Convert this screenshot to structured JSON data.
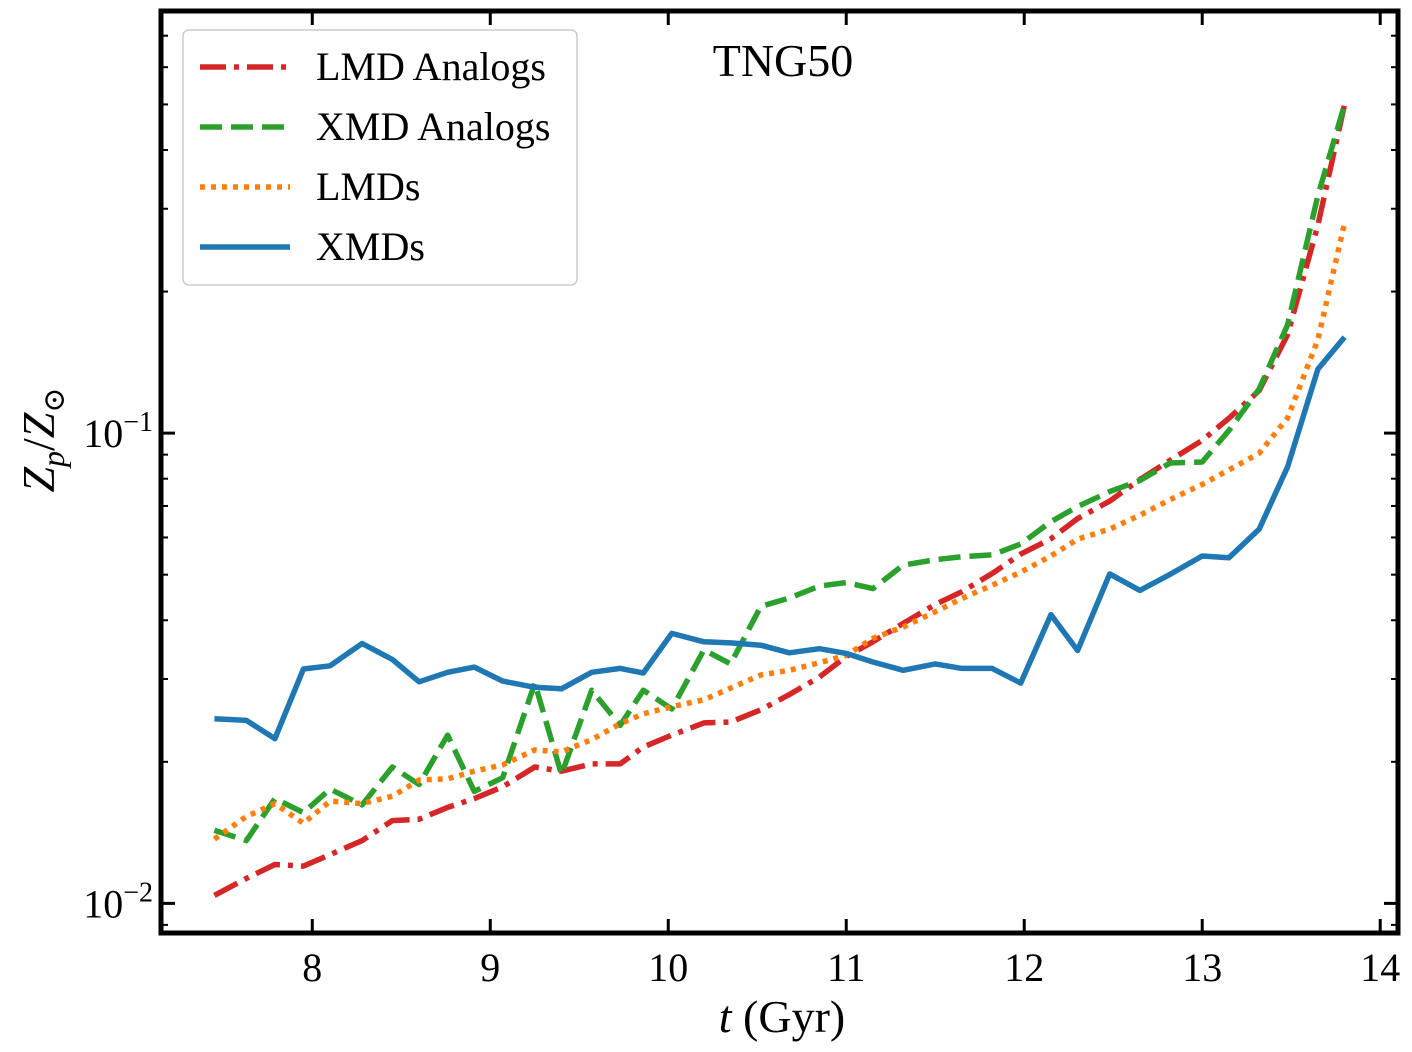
{
  "chart_data": {
    "type": "line",
    "title": "TNG50",
    "xlabel_italic": "t",
    "xlabel_unit": " (Gyr)",
    "ylabel_base": "Z",
    "ylabel_sub": "p",
    "ylabel_slash": "/",
    "ylabel_den": "Z",
    "ylabel_den_sub": "⊙",
    "xscale": "linear",
    "yscale": "log",
    "xlim": [
      7.15,
      14.1
    ],
    "ylim": [
      0.00865,
      0.79
    ],
    "x_ticks": [
      8,
      9,
      10,
      11,
      12,
      13,
      14
    ],
    "x_tick_labels": [
      "8",
      "9",
      "10",
      "11",
      "12",
      "13",
      "14"
    ],
    "y_major_ticks": [
      0.01,
      0.1
    ],
    "y_tick_labels": [
      {
        "base": "10",
        "exp": "−2"
      },
      {
        "base": "10",
        "exp": "−1"
      }
    ],
    "legend_position": "top-left",
    "series": [
      {
        "name": "LMD Analogs",
        "color": "#d62728",
        "style": "dashdot",
        "x": [
          7.45,
          7.63,
          7.79,
          7.95,
          8.1,
          8.28,
          8.45,
          8.6,
          8.76,
          8.91,
          9.07,
          9.25,
          9.4,
          9.57,
          9.73,
          9.86,
          10.02,
          10.2,
          10.35,
          10.52,
          10.68,
          10.85,
          11.0,
          11.15,
          11.32,
          11.5,
          11.65,
          11.82,
          11.98,
          12.15,
          12.3,
          12.48,
          12.65,
          12.82,
          13.0,
          13.15,
          13.32,
          13.48,
          13.65,
          13.8
        ],
        "values": [
          0.0104,
          0.0113,
          0.0121,
          0.012,
          0.0127,
          0.0136,
          0.015,
          0.0151,
          0.016,
          0.0167,
          0.0177,
          0.0195,
          0.0191,
          0.0198,
          0.0198,
          0.0215,
          0.0228,
          0.0242,
          0.0243,
          0.0258,
          0.0278,
          0.0303,
          0.0335,
          0.036,
          0.0394,
          0.0432,
          0.046,
          0.0503,
          0.0553,
          0.0596,
          0.0658,
          0.0717,
          0.0797,
          0.0876,
          0.0965,
          0.1075,
          0.1232,
          0.162,
          0.277,
          0.5
        ]
      },
      {
        "name": "XMD Analogs",
        "color": "#2ca02c",
        "style": "dashed",
        "x": [
          7.45,
          7.63,
          7.79,
          7.95,
          8.1,
          8.28,
          8.45,
          8.6,
          8.76,
          8.91,
          9.07,
          9.25,
          9.4,
          9.57,
          9.73,
          9.86,
          10.02,
          10.2,
          10.35,
          10.52,
          10.68,
          10.85,
          11.0,
          11.15,
          11.32,
          11.5,
          11.65,
          11.82,
          11.98,
          12.15,
          12.3,
          12.48,
          12.65,
          12.82,
          13.0,
          13.15,
          13.32,
          13.48,
          13.65,
          13.8
        ],
        "values": [
          0.0143,
          0.0136,
          0.0167,
          0.0156,
          0.0175,
          0.0162,
          0.0195,
          0.0179,
          0.0228,
          0.0173,
          0.0185,
          0.0294,
          0.0188,
          0.0284,
          0.0239,
          0.0284,
          0.0259,
          0.0346,
          0.0323,
          0.0428,
          0.0446,
          0.0473,
          0.0481,
          0.0467,
          0.0524,
          0.0538,
          0.0546,
          0.0551,
          0.0581,
          0.0648,
          0.0698,
          0.0751,
          0.0793,
          0.0864,
          0.0868,
          0.1013,
          0.1242,
          0.17,
          0.32,
          0.5
        ]
      },
      {
        "name": "LMDs",
        "color": "#ff7f0e",
        "style": "dotted",
        "x": [
          7.45,
          7.63,
          7.79,
          7.95,
          8.1,
          8.28,
          8.45,
          8.6,
          8.76,
          8.91,
          9.07,
          9.25,
          9.4,
          9.57,
          9.73,
          9.86,
          10.02,
          10.2,
          10.35,
          10.52,
          10.68,
          10.85,
          11.0,
          11.15,
          11.32,
          11.5,
          11.65,
          11.82,
          11.98,
          12.15,
          12.3,
          12.48,
          12.65,
          12.82,
          13.0,
          13.15,
          13.32,
          13.48,
          13.65,
          13.8
        ],
        "values": [
          0.0137,
          0.0153,
          0.0163,
          0.0148,
          0.0165,
          0.0163,
          0.0169,
          0.0183,
          0.0184,
          0.0191,
          0.0197,
          0.0212,
          0.021,
          0.0223,
          0.0241,
          0.0253,
          0.0262,
          0.0271,
          0.0287,
          0.0306,
          0.0313,
          0.0325,
          0.0337,
          0.0366,
          0.0387,
          0.0417,
          0.0445,
          0.0475,
          0.0506,
          0.0548,
          0.0595,
          0.0625,
          0.0669,
          0.0722,
          0.0778,
          0.0835,
          0.0906,
          0.1077,
          0.158,
          0.28
        ]
      },
      {
        "name": "XMDs",
        "color": "#1f77b4",
        "style": "solid",
        "x": [
          7.45,
          7.63,
          7.79,
          7.95,
          8.1,
          8.28,
          8.45,
          8.6,
          8.76,
          8.91,
          9.07,
          9.25,
          9.4,
          9.57,
          9.73,
          9.86,
          10.02,
          10.2,
          10.35,
          10.52,
          10.68,
          10.85,
          11.0,
          11.15,
          11.32,
          11.5,
          11.65,
          11.82,
          11.98,
          12.15,
          12.3,
          12.48,
          12.65,
          12.82,
          13.0,
          13.15,
          13.32,
          13.48,
          13.65,
          13.8
        ],
        "values": [
          0.0247,
          0.0245,
          0.0224,
          0.0315,
          0.032,
          0.0357,
          0.033,
          0.0296,
          0.031,
          0.0318,
          0.0297,
          0.0288,
          0.0286,
          0.031,
          0.0316,
          0.0309,
          0.0375,
          0.036,
          0.0358,
          0.0354,
          0.0341,
          0.0348,
          0.034,
          0.0326,
          0.0313,
          0.0323,
          0.0316,
          0.0316,
          0.0294,
          0.0411,
          0.0345,
          0.0502,
          0.0463,
          0.0501,
          0.0548,
          0.0543,
          0.0625,
          0.0848,
          0.1368,
          0.16
        ]
      }
    ]
  }
}
